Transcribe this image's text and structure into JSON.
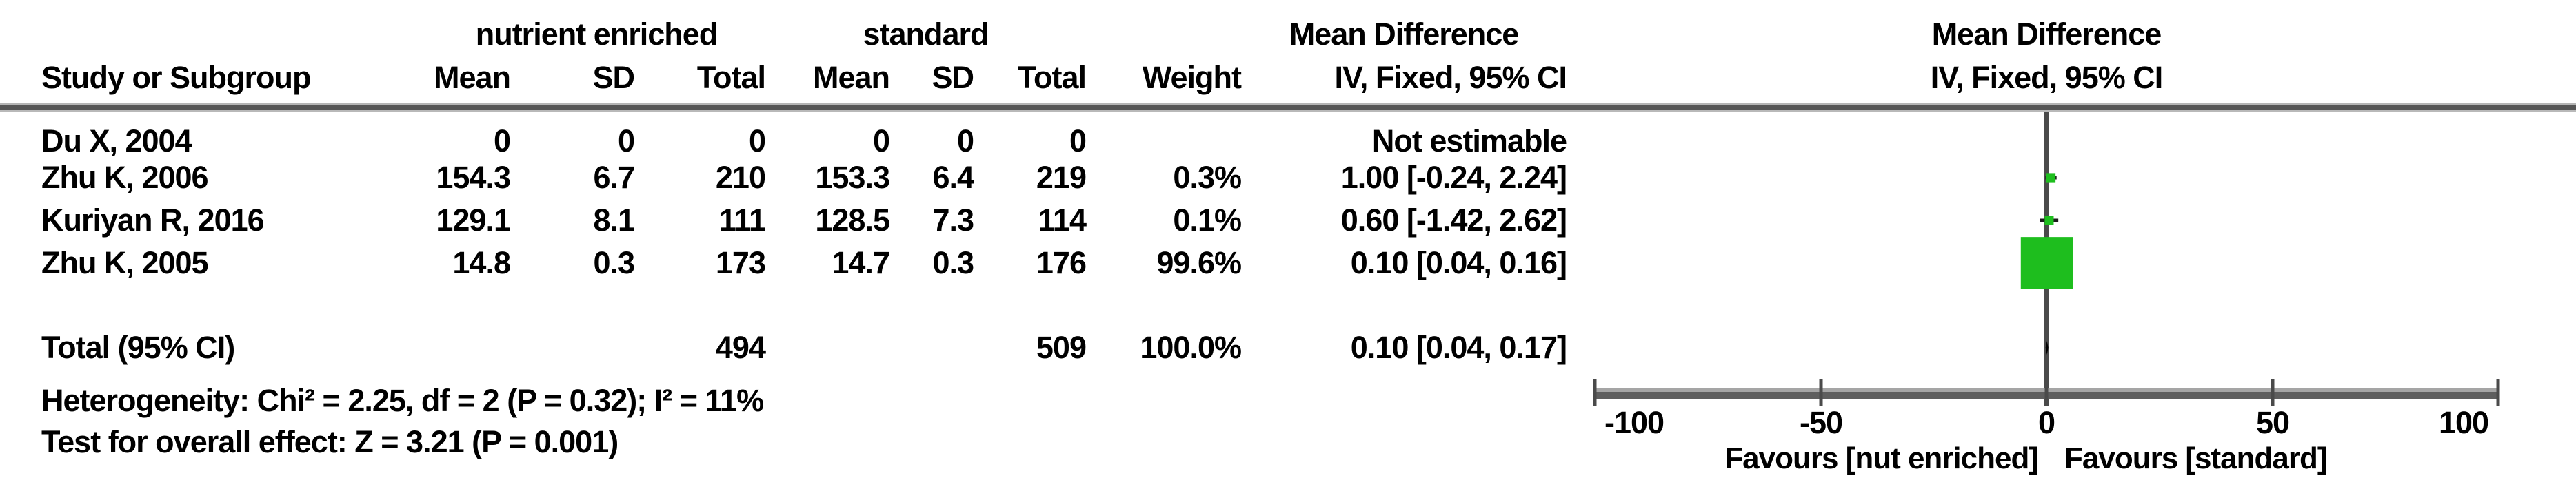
{
  "table": {
    "group1_label": "nutrient enriched",
    "group2_label": "standard",
    "effect_col_title": "Mean Difference",
    "effect_col_subtitle": "IV, Fixed, 95% CI",
    "plot_title": "Mean Difference",
    "plot_subtitle": "IV, Fixed, 95% CI",
    "col_study": "Study or Subgroup",
    "col_mean": "Mean",
    "col_sd": "SD",
    "col_total": "Total",
    "col_weight": "Weight",
    "rows": [
      {
        "study": "Du X, 2004",
        "e_mean": "0",
        "e_sd": "0",
        "e_total": "0",
        "c_mean": "0",
        "c_sd": "0",
        "c_total": "0",
        "weight": "",
        "ci": "Not estimable"
      },
      {
        "study": "Zhu K, 2006",
        "e_mean": "154.3",
        "e_sd": "6.7",
        "e_total": "210",
        "c_mean": "153.3",
        "c_sd": "6.4",
        "c_total": "219",
        "weight": "0.3%",
        "ci": "1.00 [-0.24, 2.24]"
      },
      {
        "study": "Kuriyan R, 2016",
        "e_mean": "129.1",
        "e_sd": "8.1",
        "e_total": "111",
        "c_mean": "128.5",
        "c_sd": "7.3",
        "c_total": "114",
        "weight": "0.1%",
        "ci": "0.60 [-1.42, 2.62]"
      },
      {
        "study": "Zhu K, 2005",
        "e_mean": "14.8",
        "e_sd": "0.3",
        "e_total": "173",
        "c_mean": "14.7",
        "c_sd": "0.3",
        "c_total": "176",
        "weight": "99.6%",
        "ci": "0.10 [0.04, 0.16]"
      }
    ],
    "total_row": {
      "label": "Total (95% CI)",
      "e_total": "494",
      "c_total": "509",
      "weight": "100.0%",
      "ci": "0.10 [0.04, 0.17]"
    },
    "heterogeneity_line": "Heterogeneity: Chi² = 2.25, df = 2 (P = 0.32); I² = 11%",
    "overall_effect_line": "Test for overall effect: Z = 3.21 (P = 0.001)"
  },
  "plot": {
    "ticks": [
      "-100",
      "-50",
      "0",
      "50",
      "100"
    ],
    "favours_left": "Favours [nut enriched]",
    "favours_right": "Favours [standard]",
    "marker_color": "#1ebe1e",
    "ci_color": "#1a1a1a",
    "diamond_color": "#000000",
    "axis_color": "#5e5e5e",
    "line_color": "#4a4a4a"
  },
  "chart_data": {
    "type": "scatter",
    "subtype": "forest_plot_mean_difference",
    "effect_measure": "Mean Difference, IV, Fixed, 95% CI",
    "x_axis": {
      "range": [
        -100,
        100
      ],
      "ticks": [
        -100,
        -50,
        0,
        50,
        100
      ]
    },
    "studies": [
      {
        "name": "Du X, 2004",
        "experimental": {
          "mean": 0,
          "sd": 0,
          "total": 0
        },
        "control": {
          "mean": 0,
          "sd": 0,
          "total": 0
        },
        "weight_pct": null,
        "md": null,
        "ci_low": null,
        "ci_high": null,
        "estimable": false
      },
      {
        "name": "Zhu K, 2006",
        "experimental": {
          "mean": 154.3,
          "sd": 6.7,
          "total": 210
        },
        "control": {
          "mean": 153.3,
          "sd": 6.4,
          "total": 219
        },
        "weight_pct": 0.3,
        "md": 1.0,
        "ci_low": -0.24,
        "ci_high": 2.24,
        "estimable": true
      },
      {
        "name": "Kuriyan R, 2016",
        "experimental": {
          "mean": 129.1,
          "sd": 8.1,
          "total": 111
        },
        "control": {
          "mean": 128.5,
          "sd": 7.3,
          "total": 114
        },
        "weight_pct": 0.1,
        "md": 0.6,
        "ci_low": -1.42,
        "ci_high": 2.62,
        "estimable": true
      },
      {
        "name": "Zhu K, 2005",
        "experimental": {
          "mean": 14.8,
          "sd": 0.3,
          "total": 173
        },
        "control": {
          "mean": 14.7,
          "sd": 0.3,
          "total": 176
        },
        "weight_pct": 99.6,
        "md": 0.1,
        "ci_low": 0.04,
        "ci_high": 0.16,
        "estimable": true
      }
    ],
    "total": {
      "name": "Total (95% CI)",
      "experimental_total": 494,
      "control_total": 509,
      "weight_pct": 100.0,
      "md": 0.1,
      "ci_low": 0.04,
      "ci_high": 0.17
    },
    "heterogeneity": {
      "chi2": 2.25,
      "df": 2,
      "p": 0.32,
      "i2_pct": 11
    },
    "overall_effect": {
      "z": 3.21,
      "p": 0.001
    },
    "favours_left": "Favours [nut enriched]",
    "favours_right": "Favours [standard]"
  }
}
